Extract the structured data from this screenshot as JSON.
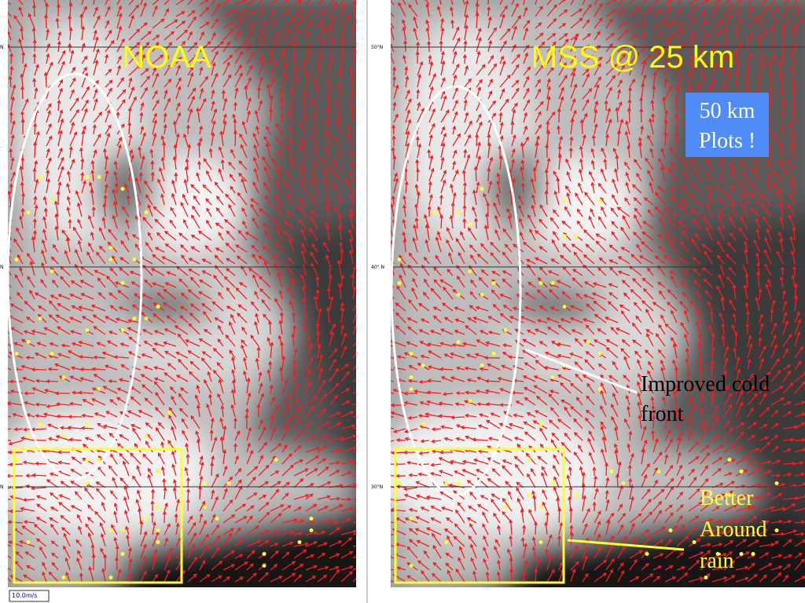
{
  "panels": [
    {
      "title": "NOAA",
      "lat_labels": [
        "N",
        "N",
        "N"
      ]
    },
    {
      "title": "MSS @ 25 km",
      "lat_labels": [
        "50°N",
        "40° N",
        "30°N"
      ]
    }
  ],
  "annotations": {
    "plots_note": [
      "50 km",
      "Plots !"
    ],
    "cold_front": [
      "Improved cold",
      "front"
    ],
    "rain": [
      "Better",
      "Around",
      "rain"
    ]
  },
  "scale_label": "10.0m/s"
}
